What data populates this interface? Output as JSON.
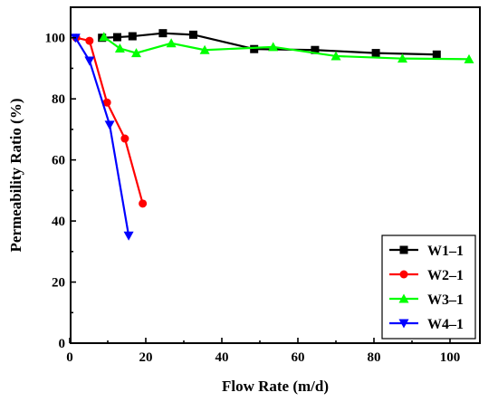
{
  "chart_data": {
    "type": "line",
    "xlabel": "Flow Rate (m/d)",
    "ylabel": "Permeability Ratio (%)",
    "xlim": [
      0,
      105
    ],
    "ylim": [
      0,
      110
    ],
    "xticks": [
      0,
      20,
      40,
      60,
      80,
      100
    ],
    "yticks": [
      0,
      20,
      40,
      60,
      80,
      100
    ],
    "grid": false,
    "legend_position": "bottom-right",
    "series": [
      {
        "name": "W1–1",
        "color": "#000000",
        "marker": "square",
        "x": [
          8.5,
          12.5,
          16.5,
          24.5,
          32.5,
          48.5,
          64.5,
          80.5,
          96.5
        ],
        "y": [
          100,
          100.2,
          100.5,
          101.5,
          101,
          96.3,
          96,
          95,
          94.5
        ]
      },
      {
        "name": "W2–1",
        "color": "#ff0000",
        "marker": "circle",
        "x": [
          1.7,
          5.2,
          9.8,
          14.5,
          19.2
        ],
        "y": [
          100,
          99,
          78.8,
          67,
          45.7
        ]
      },
      {
        "name": "W3–1",
        "color": "#00ff00",
        "marker": "triangle-up",
        "x": [
          9,
          13.2,
          17.5,
          26.7,
          35.5,
          53.5,
          70,
          87.5,
          105
        ],
        "y": [
          100.3,
          96.5,
          95,
          98.2,
          96,
          97,
          94,
          93.2,
          93
        ]
      },
      {
        "name": "W4–1",
        "color": "#0000ff",
        "marker": "triangle-down",
        "x": [
          1.5,
          5.2,
          10.5,
          15.5
        ],
        "y": [
          100,
          92.5,
          71.5,
          35.2
        ]
      }
    ]
  }
}
